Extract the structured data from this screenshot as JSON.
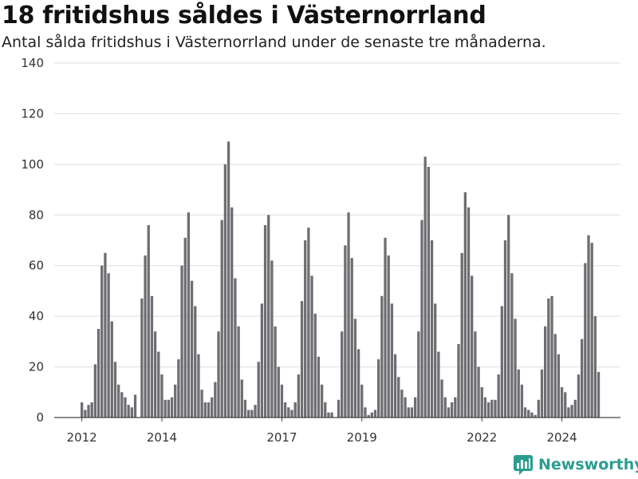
{
  "title": "18 fritidshus såldes i Västernorrland",
  "subtitle": "Antal sålda fritidshus i Västernorrland under de senaste tre månaderna.",
  "brand": {
    "name": "Newsworthy",
    "icon": "newsworthy-logo-icon",
    "color": "#2a9d8f"
  },
  "chart_data": {
    "type": "bar",
    "title": "18 fritidshus såldes i Västernorrland",
    "subtitle": "Antal sålda fritidshus i Västernorrland under de senaste tre månaderna.",
    "xlabel": "",
    "ylabel": "",
    "ylim": [
      0,
      140
    ],
    "yticks": [
      0,
      20,
      40,
      60,
      80,
      100,
      120,
      140
    ],
    "grid": true,
    "bar_color": "#6e6d72",
    "highlight_color": "#1a9e8f",
    "x_tick_labels": [
      {
        "label": "2012",
        "index": 0
      },
      {
        "label": "2014",
        "index": 24
      },
      {
        "label": "2017",
        "index": 60
      },
      {
        "label": "2019",
        "index": 84
      },
      {
        "label": "2022",
        "index": 120
      },
      {
        "label": "2024",
        "index": 144
      }
    ],
    "values": [
      6,
      3,
      5,
      6,
      21,
      35,
      60,
      65,
      57,
      38,
      22,
      13,
      10,
      8,
      5,
      4,
      9,
      0,
      47,
      64,
      76,
      48,
      34,
      26,
      17,
      7,
      7,
      8,
      13,
      23,
      60,
      71,
      81,
      54,
      44,
      25,
      11,
      6,
      6,
      8,
      14,
      34,
      78,
      100,
      109,
      83,
      55,
      36,
      15,
      7,
      3,
      3,
      5,
      22,
      45,
      76,
      80,
      62,
      36,
      20,
      13,
      6,
      4,
      3,
      6,
      17,
      46,
      70,
      75,
      56,
      41,
      24,
      13,
      6,
      2,
      2,
      0,
      7,
      34,
      68,
      81,
      63,
      39,
      27,
      13,
      4,
      1,
      2,
      3,
      23,
      48,
      71,
      64,
      45,
      25,
      16,
      11,
      8,
      4,
      4,
      8,
      34,
      78,
      103,
      99,
      70,
      45,
      26,
      15,
      8,
      4,
      6,
      8,
      29,
      65,
      89,
      83,
      56,
      34,
      20,
      12,
      8,
      6,
      7,
      7,
      17,
      44,
      70,
      80,
      57,
      39,
      19,
      13,
      4,
      3,
      2,
      1,
      7,
      19,
      36,
      47,
      48,
      33,
      25,
      12,
      10,
      4,
      5,
      7,
      17,
      31,
      61,
      72,
      69,
      40,
      18
    ],
    "highlight": {
      "index": 156,
      "label": "18"
    }
  }
}
